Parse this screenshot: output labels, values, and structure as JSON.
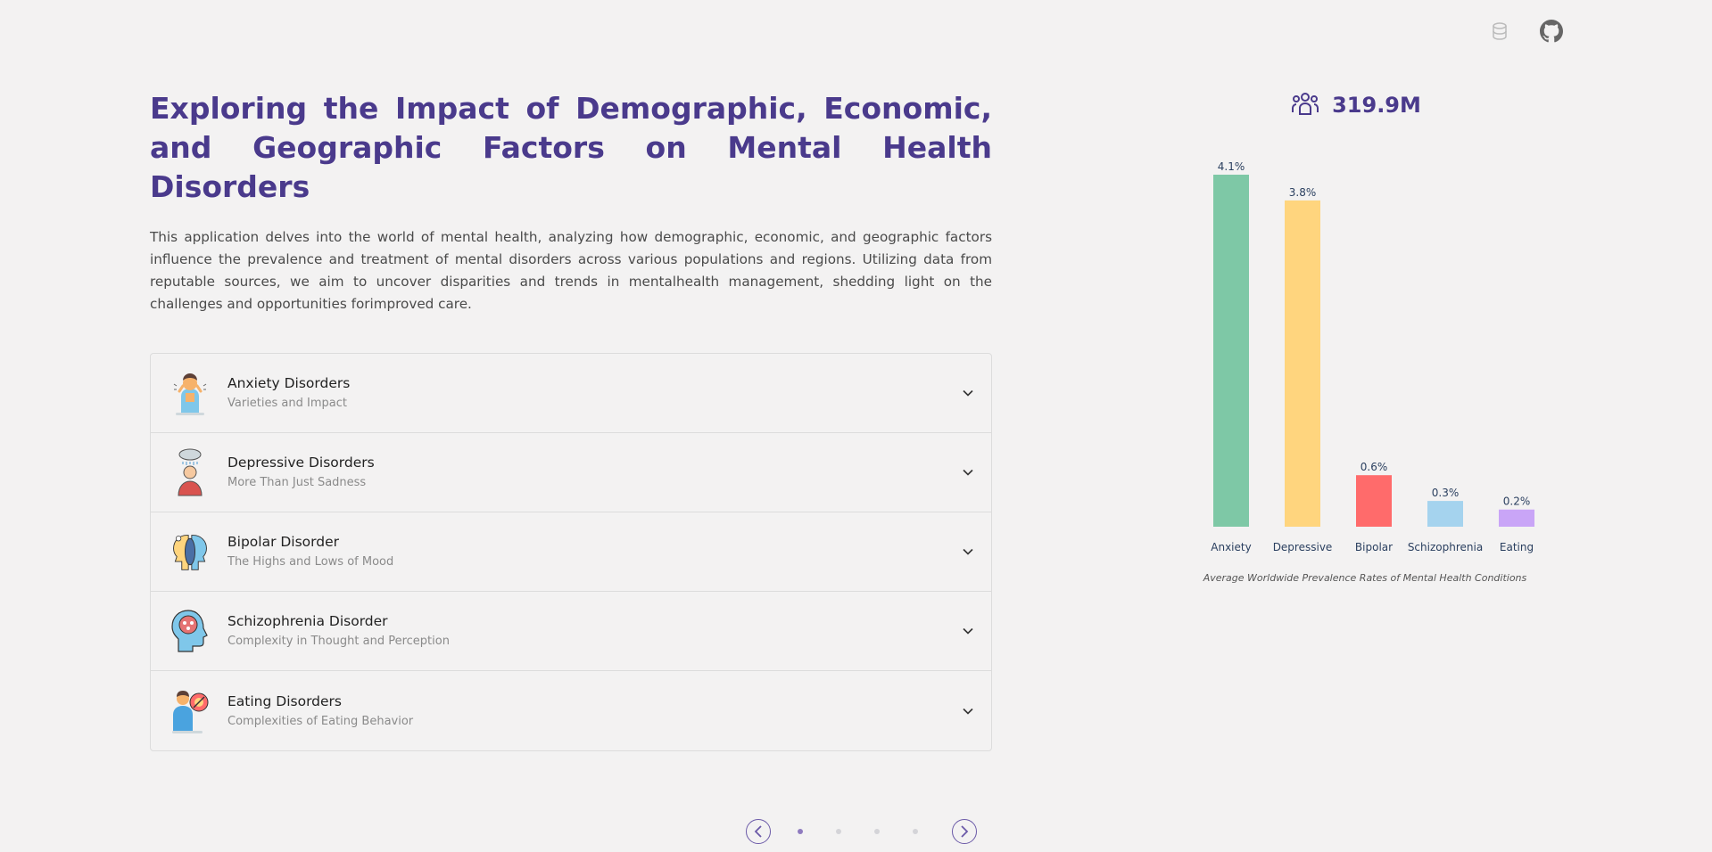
{
  "header": {
    "icons": [
      "database-icon",
      "github-icon"
    ]
  },
  "intro": {
    "title": "Exploring the Impact of Demographic, Economic, and Geographic Factors on Mental Health Disorders",
    "description": "This application delves into the world of mental health, analyzing how demographic, economic, and geographic factors influence the prevalence and treatment of mental disorders across various populations and regions. Utilizing data from reputable sources, we aim to uncover disparities and trends in mentalhealth management, shedding light on the challenges and opportunities forimproved care."
  },
  "disorders": [
    {
      "title": "Anxiety Disorders",
      "subtitle": "Varieties and Impact",
      "icon": "anxiety-person-icon"
    },
    {
      "title": "Depressive Disorders",
      "subtitle": "More Than Just Sadness",
      "icon": "rain-cloud-person-icon"
    },
    {
      "title": "Bipolar Disorder",
      "subtitle": "The Highs and Lows of Mood",
      "icon": "two-faces-icon"
    },
    {
      "title": "Schizophrenia Disorder",
      "subtitle": "Complexity in Thought and Perception",
      "icon": "brain-head-icon"
    },
    {
      "title": "Eating Disorders",
      "subtitle": "Complexities of Eating Behavior",
      "icon": "eating-person-icon"
    }
  ],
  "stat": {
    "value": "319.9M",
    "icon": "people-group-icon"
  },
  "chart_data": {
    "type": "bar",
    "categories": [
      "Anxiety",
      "Depressive",
      "Bipolar",
      "Schizophrenia",
      "Eating"
    ],
    "values": [
      4.1,
      3.8,
      0.6,
      0.3,
      0.2
    ],
    "labels": [
      "4.1%",
      "3.8%",
      "0.6%",
      "0.3%",
      "0.2%"
    ],
    "colors": [
      "#7ec8a6",
      "#ffd57e",
      "#ff6b6b",
      "#a5d3ee",
      "#c9a5f7"
    ],
    "title": "Average Worldwide Prevalence Rates of Mental Health Conditions",
    "xlabel": "",
    "ylabel": "",
    "ylim": [
      0,
      4.1
    ],
    "grid": false,
    "legend": "none"
  },
  "pager": {
    "pages": 4,
    "active": 0
  },
  "colors": {
    "accent": "#4a3a8c",
    "background": "#f3f2f2"
  }
}
